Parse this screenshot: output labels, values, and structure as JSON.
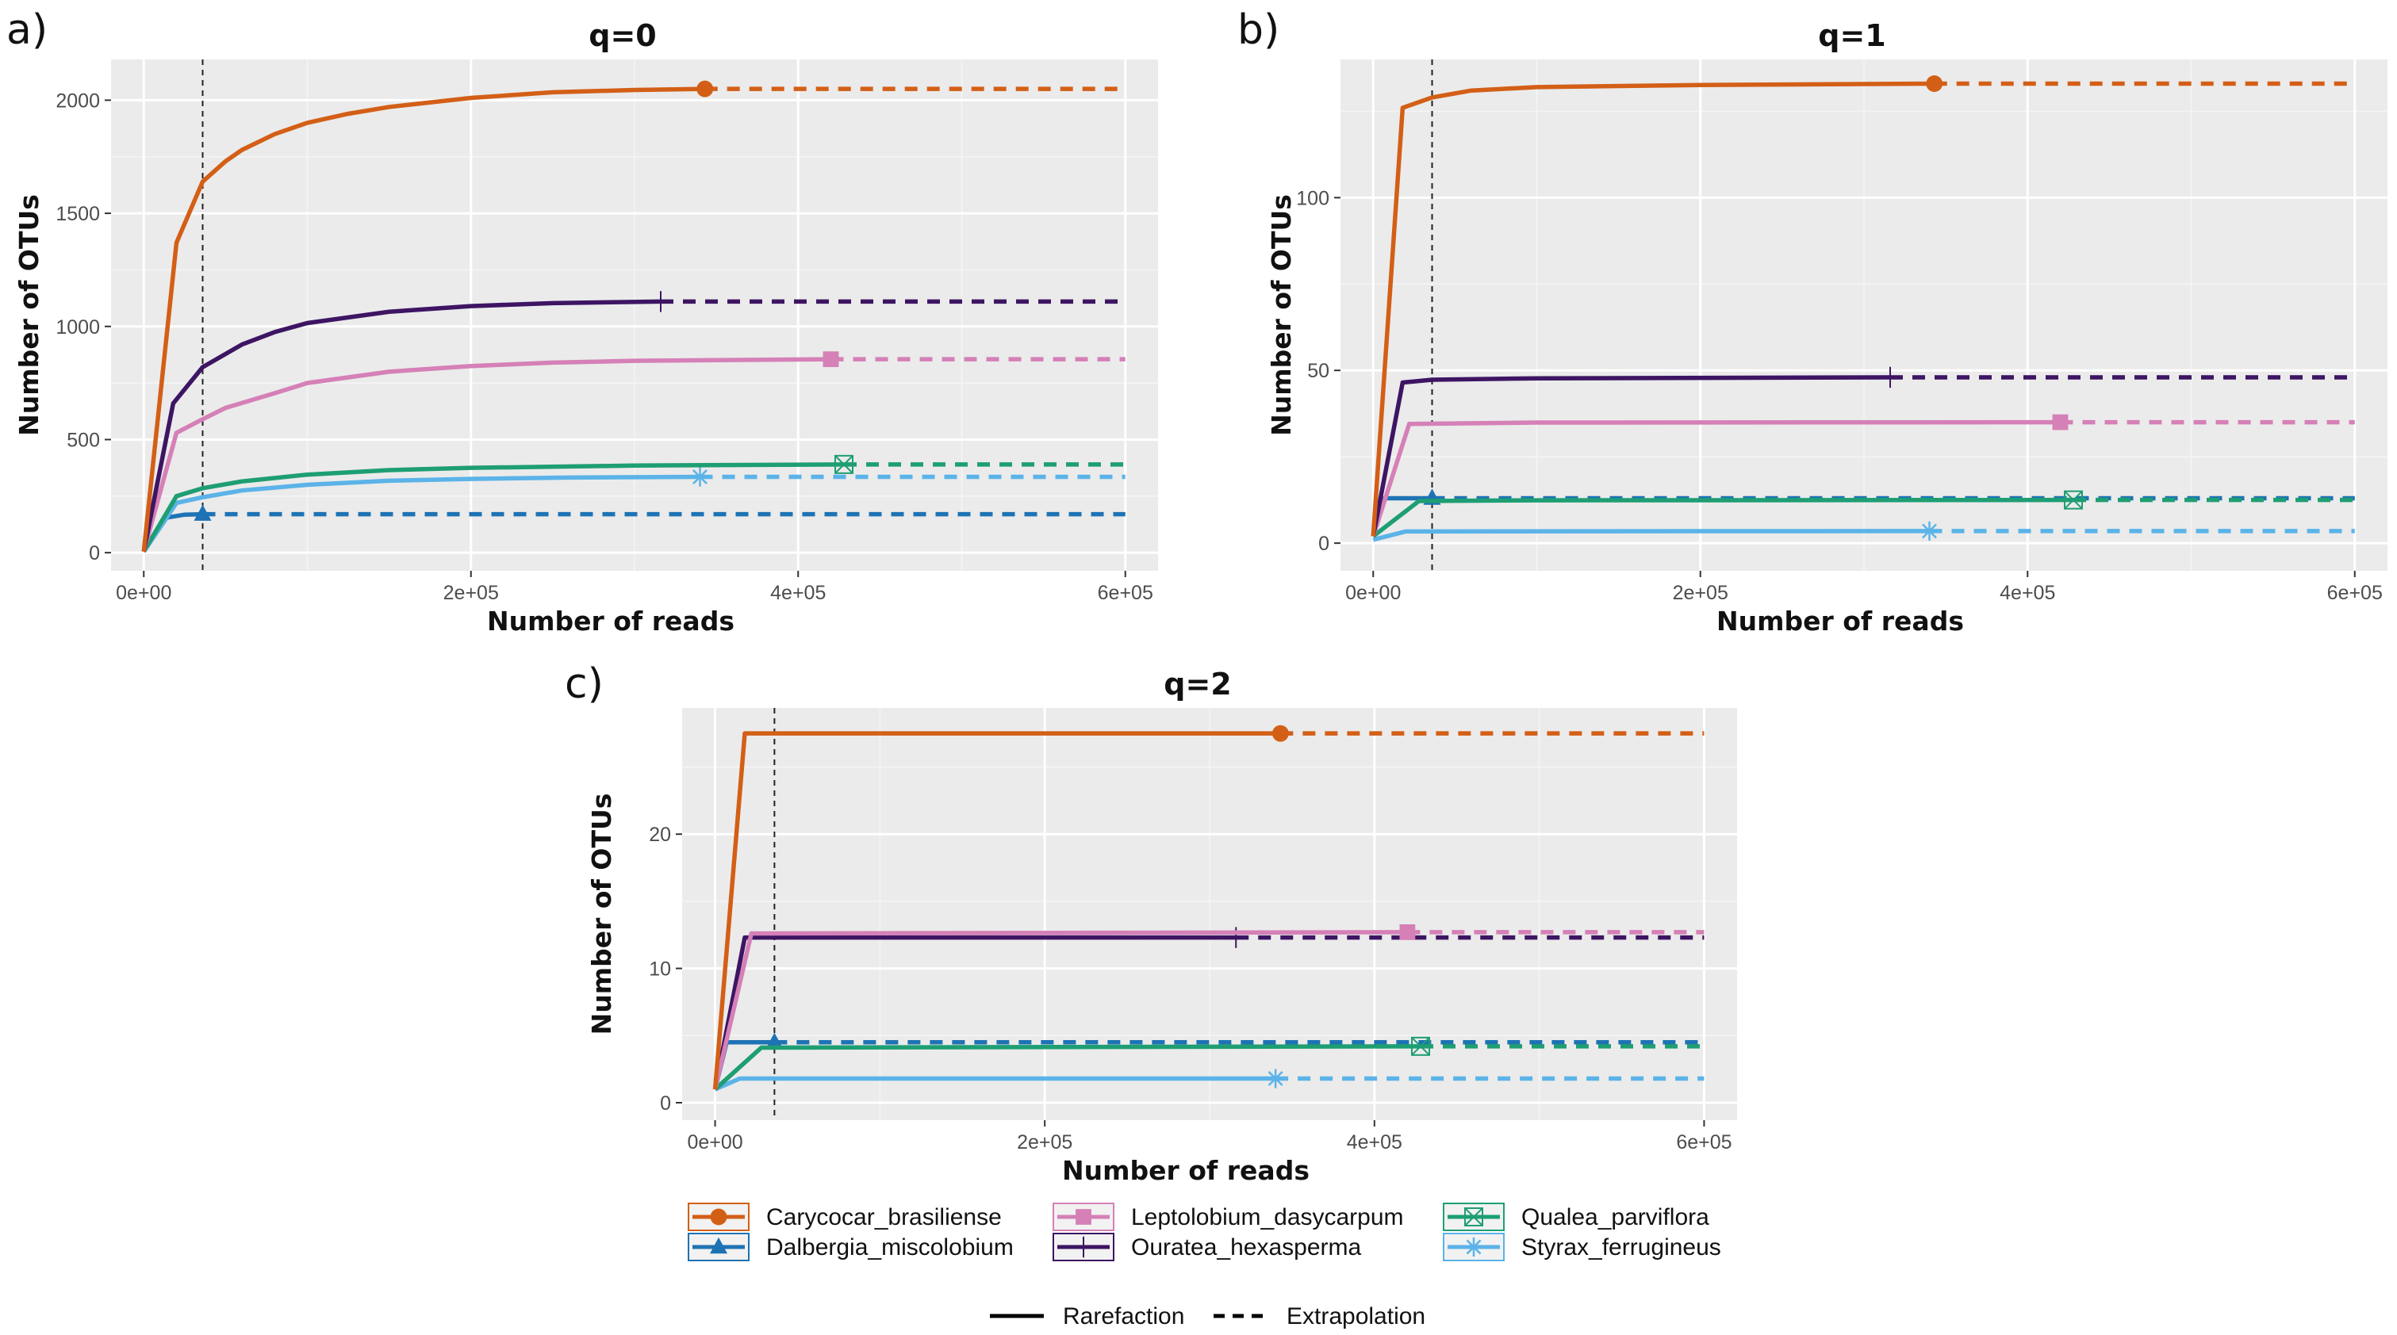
{
  "legend": {
    "series": [
      {
        "name": "Carycocar_brasiliense",
        "color": "#d35f17",
        "marker": "circle"
      },
      {
        "name": "Dalbergia_miscolobium",
        "color": "#1e73b4",
        "marker": "triangle"
      },
      {
        "name": "Leptolobium_dasycarpum",
        "color": "#d580b7",
        "marker": "square"
      },
      {
        "name": "Ouratea_hexasperma",
        "color": "#3d1563",
        "marker": "plus"
      },
      {
        "name": "Qualea_parviflora",
        "color": "#1e9e73",
        "marker": "boxed-x"
      },
      {
        "name": "Styrax_ferrugineus",
        "color": "#5bb3e8",
        "marker": "asterisk"
      }
    ],
    "line_types": [
      {
        "name": "Rarefaction",
        "style": "solid"
      },
      {
        "name": "Extrapolation",
        "style": "dashed"
      }
    ]
  },
  "chart_data": [
    {
      "type": "line",
      "panel": "a)",
      "title": "q=0",
      "xlabel": "Number of reads",
      "ylabel": "Number of OTUs",
      "xlim": [
        -20000,
        620000
      ],
      "ylim": [
        -80,
        2180
      ],
      "x_ticks": [
        0,
        200000,
        400000,
        600000
      ],
      "x_tick_labels": [
        "0e+00",
        "2e+05",
        "4e+05",
        "6e+05"
      ],
      "y_ticks": [
        0,
        500,
        1000,
        1500,
        2000
      ],
      "y_tick_labels": [
        "0",
        "500",
        "1000",
        "1500",
        "2000"
      ],
      "reference_x": 36000,
      "series": [
        {
          "name": "Carycocar_brasiliense",
          "observed": [
            343000,
            2050
          ],
          "rarefaction": [
            [
              0,
              5
            ],
            [
              20000,
              1370
            ],
            [
              36000,
              1640
            ],
            [
              50000,
              1730
            ],
            [
              60000,
              1780
            ],
            [
              80000,
              1850
            ],
            [
              100000,
              1900
            ],
            [
              125000,
              1940
            ],
            [
              150000,
              1970
            ],
            [
              200000,
              2010
            ],
            [
              250000,
              2035
            ],
            [
              300000,
              2045
            ],
            [
              343000,
              2050
            ]
          ],
          "extrapolation": [
            [
              343000,
              2050
            ],
            [
              600000,
              2050
            ]
          ]
        },
        {
          "name": "Ouratea_hexasperma",
          "observed": [
            316000,
            1110
          ],
          "rarefaction": [
            [
              0,
              5
            ],
            [
              18000,
              660
            ],
            [
              36000,
              820
            ],
            [
              60000,
              920
            ],
            [
              80000,
              975
            ],
            [
              100000,
              1015
            ],
            [
              150000,
              1065
            ],
            [
              200000,
              1090
            ],
            [
              250000,
              1103
            ],
            [
              316000,
              1110
            ]
          ],
          "extrapolation": [
            [
              316000,
              1110
            ],
            [
              600000,
              1110
            ]
          ]
        },
        {
          "name": "Leptolobium_dasycarpum",
          "observed": [
            420000,
            855
          ],
          "rarefaction": [
            [
              0,
              5
            ],
            [
              20000,
              530
            ],
            [
              36000,
              590
            ],
            [
              50000,
              640
            ],
            [
              80000,
              705
            ],
            [
              100000,
              750
            ],
            [
              150000,
              800
            ],
            [
              200000,
              825
            ],
            [
              250000,
              840
            ],
            [
              300000,
              848
            ],
            [
              420000,
              855
            ]
          ],
          "extrapolation": [
            [
              420000,
              855
            ],
            [
              600000,
              855
            ]
          ]
        },
        {
          "name": "Qualea_parviflora",
          "observed": [
            428000,
            390
          ],
          "rarefaction": [
            [
              0,
              5
            ],
            [
              20000,
              250
            ],
            [
              36000,
              285
            ],
            [
              60000,
              315
            ],
            [
              100000,
              345
            ],
            [
              150000,
              365
            ],
            [
              200000,
              375
            ],
            [
              300000,
              385
            ],
            [
              428000,
              390
            ]
          ],
          "extrapolation": [
            [
              428000,
              390
            ],
            [
              600000,
              390
            ]
          ]
        },
        {
          "name": "Styrax_ferrugineus",
          "observed": [
            340000,
            335
          ],
          "rarefaction": [
            [
              0,
              5
            ],
            [
              20000,
              220
            ],
            [
              36000,
              245
            ],
            [
              60000,
              275
            ],
            [
              100000,
              300
            ],
            [
              150000,
              318
            ],
            [
              200000,
              326
            ],
            [
              260000,
              332
            ],
            [
              340000,
              335
            ]
          ],
          "extrapolation": [
            [
              340000,
              335
            ],
            [
              600000,
              335
            ]
          ]
        },
        {
          "name": "Dalbergia_miscolobium",
          "observed": [
            36000,
            170
          ],
          "rarefaction": [
            [
              0,
              5
            ],
            [
              14000,
              155
            ],
            [
              25000,
              168
            ],
            [
              36000,
              170
            ]
          ],
          "extrapolation": [
            [
              36000,
              170
            ],
            [
              600000,
              170
            ]
          ]
        }
      ]
    },
    {
      "type": "line",
      "panel": "b)",
      "title": "q=1",
      "xlabel": "Number of reads",
      "ylabel": "Number of OTUs",
      "xlim": [
        -20000,
        620000
      ],
      "ylim": [
        -8,
        140
      ],
      "x_ticks": [
        0,
        200000,
        400000,
        600000
      ],
      "x_tick_labels": [
        "0e+00",
        "2e+05",
        "4e+05",
        "6e+05"
      ],
      "y_ticks": [
        0,
        50,
        100
      ],
      "y_tick_labels": [
        "0",
        "50",
        "100"
      ],
      "reference_x": 36000,
      "series": [
        {
          "name": "Carycocar_brasiliense",
          "observed": [
            343000,
            133
          ],
          "rarefaction": [
            [
              0,
              2
            ],
            [
              18000,
              126
            ],
            [
              36000,
              129
            ],
            [
              60000,
              131
            ],
            [
              100000,
              132
            ],
            [
              200000,
              132.6
            ],
            [
              343000,
              133
            ]
          ],
          "extrapolation": [
            [
              343000,
              133
            ],
            [
              600000,
              133
            ]
          ]
        },
        {
          "name": "Ouratea_hexasperma",
          "observed": [
            316000,
            48
          ],
          "rarefaction": [
            [
              0,
              2
            ],
            [
              18000,
              46.5
            ],
            [
              36000,
              47.3
            ],
            [
              100000,
              47.7
            ],
            [
              316000,
              48
            ]
          ],
          "extrapolation": [
            [
              316000,
              48
            ],
            [
              600000,
              48
            ]
          ]
        },
        {
          "name": "Leptolobium_dasycarpum",
          "observed": [
            420000,
            35
          ],
          "rarefaction": [
            [
              0,
              2
            ],
            [
              22000,
              34.5
            ],
            [
              100000,
              34.9
            ],
            [
              420000,
              35
            ]
          ],
          "extrapolation": [
            [
              420000,
              35
            ],
            [
              600000,
              35
            ]
          ]
        },
        {
          "name": "Qualea_parviflora",
          "observed": [
            428000,
            12.5
          ],
          "rarefaction": [
            [
              0,
              2
            ],
            [
              28000,
              12.2
            ],
            [
              100000,
              12.4
            ],
            [
              428000,
              12.5
            ]
          ],
          "extrapolation": [
            [
              428000,
              12.5
            ],
            [
              600000,
              12.5
            ]
          ]
        },
        {
          "name": "Dalbergia_miscolobium",
          "observed": [
            36000,
            13
          ],
          "rarefaction": [
            [
              0,
              2
            ],
            [
              7000,
              13
            ],
            [
              36000,
              13
            ]
          ],
          "extrapolation": [
            [
              36000,
              13
            ],
            [
              600000,
              13
            ]
          ]
        },
        {
          "name": "Styrax_ferrugineus",
          "observed": [
            340000,
            3.5
          ],
          "rarefaction": [
            [
              0,
              1
            ],
            [
              20000,
              3.4
            ],
            [
              340000,
              3.5
            ]
          ],
          "extrapolation": [
            [
              340000,
              3.5
            ],
            [
              600000,
              3.5
            ]
          ]
        }
      ]
    },
    {
      "type": "line",
      "panel": "c)",
      "title": "q=2",
      "xlabel": "Number of reads",
      "ylabel": "Number of OTUs",
      "xlim": [
        -20000,
        620000
      ],
      "ylim": [
        -1.3,
        29.4
      ],
      "x_ticks": [
        0,
        200000,
        400000,
        600000
      ],
      "x_tick_labels": [
        "0e+00",
        "2e+05",
        "4e+05",
        "6e+05"
      ],
      "y_ticks": [
        0,
        10,
        20
      ],
      "y_tick_labels": [
        "0",
        "10",
        "20"
      ],
      "reference_x": 36000,
      "series": [
        {
          "name": "Carycocar_brasiliense",
          "observed": [
            343000,
            27.5
          ],
          "rarefaction": [
            [
              0,
              1
            ],
            [
              18000,
              27.5
            ],
            [
              343000,
              27.5
            ]
          ],
          "extrapolation": [
            [
              343000,
              27.5
            ],
            [
              600000,
              27.5
            ]
          ]
        },
        {
          "name": "Leptolobium_dasycarpum",
          "observed": [
            420000,
            12.7
          ],
          "rarefaction": [
            [
              0,
              1
            ],
            [
              22000,
              12.6
            ],
            [
              420000,
              12.7
            ]
          ],
          "extrapolation": [
            [
              420000,
              12.7
            ],
            [
              600000,
              12.7
            ]
          ]
        },
        {
          "name": "Ouratea_hexasperma",
          "observed": [
            316000,
            12.3
          ],
          "rarefaction": [
            [
              0,
              1
            ],
            [
              18000,
              12.3
            ],
            [
              316000,
              12.3
            ]
          ],
          "extrapolation": [
            [
              316000,
              12.3
            ],
            [
              600000,
              12.3
            ]
          ]
        },
        {
          "name": "Qualea_parviflora",
          "observed": [
            428000,
            4.2
          ],
          "rarefaction": [
            [
              0,
              1
            ],
            [
              28000,
              4.1
            ],
            [
              428000,
              4.2
            ]
          ],
          "extrapolation": [
            [
              428000,
              4.2
            ],
            [
              600000,
              4.2
            ]
          ]
        },
        {
          "name": "Dalbergia_miscolobium",
          "observed": [
            36000,
            4.5
          ],
          "rarefaction": [
            [
              0,
              1
            ],
            [
              7000,
              4.5
            ],
            [
              36000,
              4.5
            ]
          ],
          "extrapolation": [
            [
              36000,
              4.5
            ],
            [
              600000,
              4.5
            ]
          ]
        },
        {
          "name": "Styrax_ferrugineus",
          "observed": [
            340000,
            1.8
          ],
          "rarefaction": [
            [
              0,
              1
            ],
            [
              15000,
              1.8
            ],
            [
              340000,
              1.8
            ]
          ],
          "extrapolation": [
            [
              340000,
              1.8
            ],
            [
              600000,
              1.8
            ]
          ]
        }
      ]
    }
  ]
}
